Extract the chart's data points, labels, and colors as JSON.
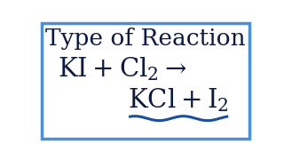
{
  "title": "Type of Reaction",
  "title_fontsize": 19,
  "bg_color": "#ffffff",
  "border_color": "#4a90d9",
  "text_color": "#0d1a40",
  "wave_color": "#1a4fa0",
  "wave_amplitude": 0.018,
  "wave_period": 0.22
}
